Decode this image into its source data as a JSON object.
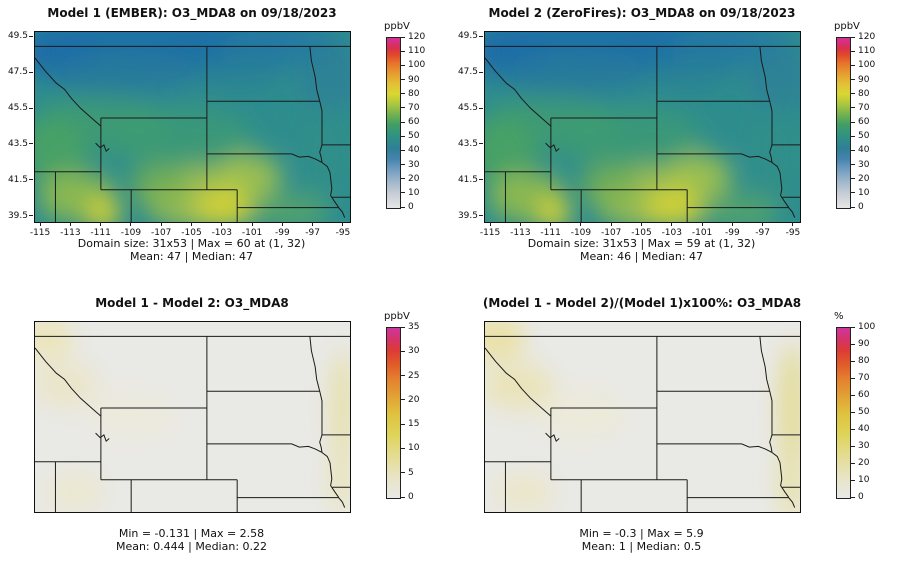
{
  "figure": {
    "background": "#ffffff"
  },
  "palette": {
    "o3_low": "#e6e6e6",
    "o3_blue": "#4583ad",
    "o3_teal": "#2f9184",
    "o3_green": "#419e66",
    "o3_yellow": "#d9d733",
    "o3_orange": "#e6742c",
    "o3_red": "#e04a28",
    "o3_magenta": "#d4309b",
    "diff_low": "#e9e9e6",
    "diff_yellow": "#ded356",
    "diff_orange": "#e4802e",
    "diff_magenta": "#cf35a0",
    "border_line": "#1a1a1a"
  },
  "panels": [
    {
      "id": "model1",
      "title": "Model 1 (EMBER): O3_MDA8 on 09/18/2023",
      "captions": [
        "Domain size: 31x53 | Max = 60 at (1, 32)",
        "Mean: 47 | Median: 47"
      ],
      "colorbar": {
        "unit": "ppbV",
        "min": 0,
        "max": 120,
        "ticks": [
          0,
          10,
          20,
          30,
          40,
          50,
          60,
          70,
          80,
          90,
          100,
          110,
          120
        ]
      },
      "axes": {
        "x_ticks": [
          -115,
          -113,
          -111,
          -109,
          -107,
          -105,
          -103,
          -101,
          -99,
          -97,
          -95
        ],
        "y_ticks": [
          39.5,
          41.5,
          43.5,
          45.5,
          47.5,
          49.5
        ]
      }
    },
    {
      "id": "model2",
      "title": "Model 2 (ZeroFires): O3_MDA8 on 09/18/2023",
      "captions": [
        "Domain size: 31x53 | Max = 59 at (1, 32)",
        "Mean: 46 | Median: 47"
      ],
      "colorbar": {
        "unit": "ppbV",
        "min": 0,
        "max": 120,
        "ticks": [
          0,
          10,
          20,
          30,
          40,
          50,
          60,
          70,
          80,
          90,
          100,
          110,
          120
        ]
      },
      "axes": {
        "x_ticks": [
          -115,
          -113,
          -111,
          -109,
          -107,
          -105,
          -103,
          -101,
          -99,
          -97,
          -95
        ],
        "y_ticks": [
          39.5,
          41.5,
          43.5,
          45.5,
          47.5,
          49.5
        ]
      }
    },
    {
      "id": "diff",
      "title": "Model 1 - Model 2: O3_MDA8",
      "captions": [
        "Min = -0.131 | Max = 2.58",
        "Mean: 0.444 | Median: 0.22"
      ],
      "colorbar": {
        "unit": "ppbV",
        "min": 0,
        "max": 35,
        "ticks": [
          0,
          5,
          10,
          15,
          20,
          25,
          30,
          35
        ]
      }
    },
    {
      "id": "pctdiff",
      "title": "(Model 1 - Model 2)/(Model 1)x100%: O3_MDA8",
      "captions": [
        "Min = -0.3 | Max = 5.9",
        "Mean: 1 | Median: 0.5"
      ],
      "colorbar": {
        "unit": "%",
        "min": 0,
        "max": 100,
        "ticks": [
          0,
          10,
          20,
          30,
          40,
          50,
          60,
          70,
          80,
          90,
          100
        ]
      }
    }
  ],
  "chart_data": [
    {
      "type": "heatmap",
      "title": "Model 1 (EMBER): O3_MDA8 on 09/18/2023",
      "model": "Model 1 (EMBER)",
      "variable": "O3_MDA8",
      "date": "09/18/2023",
      "unit": "ppbV",
      "domain_size": "31x53",
      "max": 60,
      "max_at": "(1, 32)",
      "mean": 47,
      "median": 47,
      "lon_range": [
        -115,
        -95
      ],
      "lat_range": [
        39.5,
        49.5
      ],
      "x_ticks": [
        -115,
        -113,
        -111,
        -109,
        -107,
        -105,
        -103,
        -101,
        -99,
        -97,
        -95
      ],
      "y_ticks": [
        39.5,
        41.5,
        43.5,
        45.5,
        47.5,
        49.5
      ],
      "colorbar": {
        "unit": "ppbV",
        "range": [
          0,
          120
        ],
        "ticks": [
          0,
          10,
          20,
          30,
          40,
          50,
          60,
          70,
          80,
          90,
          100,
          110,
          120
        ]
      },
      "field_summary": "Mostly 40-55 ppbV teal/green over domain; darker blue 30-40 band across northern Montana and NW corner; yellow 55-62 patches over NE Colorado, SW Nebraska panhandle and near Utah southern edge."
    },
    {
      "type": "heatmap",
      "title": "Model 2 (ZeroFires): O3_MDA8 on 09/18/2023",
      "model": "Model 2 (ZeroFires)",
      "variable": "O3_MDA8",
      "date": "09/18/2023",
      "unit": "ppbV",
      "domain_size": "31x53",
      "max": 59,
      "max_at": "(1, 32)",
      "mean": 46,
      "median": 47,
      "lon_range": [
        -115,
        -95
      ],
      "lat_range": [
        39.5,
        49.5
      ],
      "x_ticks": [
        -115,
        -113,
        -111,
        -109,
        -107,
        -105,
        -103,
        -101,
        -99,
        -97,
        -95
      ],
      "y_ticks": [
        39.5,
        41.5,
        43.5,
        45.5,
        47.5,
        49.5
      ],
      "colorbar": {
        "unit": "ppbV",
        "range": [
          0,
          120
        ],
        "ticks": [
          0,
          10,
          20,
          30,
          40,
          50,
          60,
          70,
          80,
          90,
          100,
          110,
          120
        ]
      },
      "field_summary": "Nearly identical spatial pattern to Model 1, about 1 ppbV lower overall."
    },
    {
      "type": "heatmap",
      "title": "Model 1 - Model 2: O3_MDA8",
      "variable": "O3_MDA8",
      "unit": "ppbV",
      "min": -0.131,
      "max": 2.58,
      "mean": 0.444,
      "median": 0.22,
      "lon_range": [
        -115,
        -95
      ],
      "lat_range": [
        39.5,
        49.5
      ],
      "colorbar": {
        "unit": "ppbV",
        "range": [
          0,
          35
        ],
        "ticks": [
          0,
          5,
          10,
          15,
          20,
          25,
          30,
          35
        ]
      },
      "field_summary": "Near-zero (light gray) differences almost everywhere; faint pale-yellow 1-3 ppbV patches near NW corner, central Idaho/Montana border and along the eastern domain edge."
    },
    {
      "type": "heatmap",
      "title": "(Model 1 - Model 2)/(Model 1)x100%: O3_MDA8",
      "variable": "O3_MDA8",
      "unit": "%",
      "min": -0.3,
      "max": 5.9,
      "mean": 1,
      "median": 0.5,
      "lon_range": [
        -115,
        -95
      ],
      "lat_range": [
        39.5,
        49.5
      ],
      "colorbar": {
        "unit": "%",
        "range": [
          0,
          100
        ],
        "ticks": [
          0,
          10,
          20,
          30,
          40,
          50,
          60,
          70,
          80,
          90,
          100
        ]
      },
      "field_summary": "Mostly near-zero percent difference (light gray); slight pale-yellow (a few percent) along eastern edge and NW areas."
    }
  ]
}
